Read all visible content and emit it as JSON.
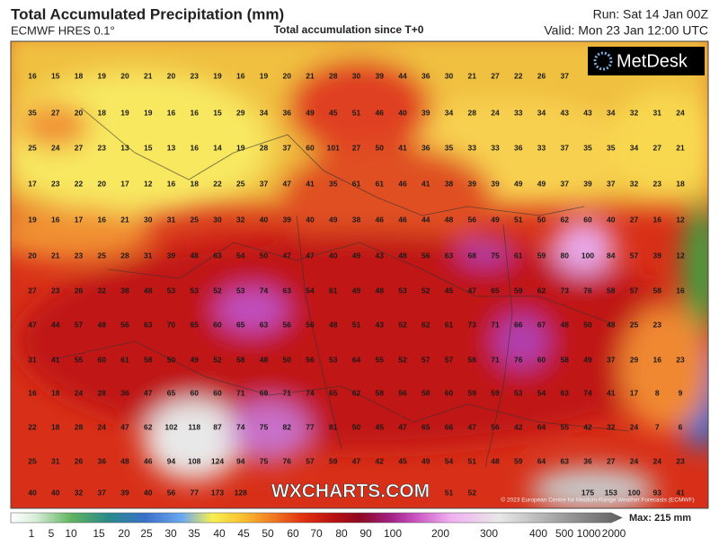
{
  "header": {
    "title": "Total Accumulated Precipitation (mm)",
    "model": "ECMWF HRES 0.1°",
    "subtitle": "Total accumulation since T+0",
    "run": "Run: Sat 14 Jan 00Z",
    "valid": "Valid: Mon 23 Jan 12:00 UTC"
  },
  "logo": "MetDesk",
  "watermark": "WXCHARTS.COM",
  "copyright": "© 2023 European Centre for Medium-Range Weather Forecasts (ECMWF)",
  "grid_values": [
    [
      16,
      15,
      18,
      19,
      20,
      21,
      20,
      23,
      19,
      16,
      19,
      20,
      21,
      28,
      30,
      39,
      44,
      36,
      30,
      21,
      27,
      22,
      26,
      37
    ],
    [
      35,
      27,
      20,
      18,
      19,
      19,
      16,
      16,
      15,
      29,
      34,
      36,
      49,
      45,
      51,
      46,
      40,
      39,
      34,
      28,
      24,
      33,
      34,
      43,
      43,
      34,
      32,
      31,
      24
    ],
    [
      25,
      24,
      27,
      23,
      13,
      15,
      13,
      16,
      14,
      19,
      28,
      37,
      60,
      101,
      27,
      50,
      41,
      36,
      35,
      33,
      33,
      36,
      33,
      37,
      35,
      35,
      34,
      27,
      21
    ],
    [
      17,
      23,
      22,
      20,
      17,
      12,
      16,
      18,
      22,
      25,
      37,
      47,
      41,
      35,
      61,
      61,
      46,
      41,
      38,
      39,
      39,
      49,
      49,
      37,
      39,
      37,
      32,
      23,
      18
    ],
    [
      19,
      16,
      17,
      16,
      21,
      30,
      31,
      25,
      30,
      32,
      40,
      39,
      40,
      49,
      38,
      46,
      46,
      44,
      48,
      56,
      49,
      51,
      50,
      62,
      60,
      40,
      27,
      16,
      12
    ],
    [
      20,
      21,
      23,
      25,
      28,
      31,
      39,
      48,
      63,
      54,
      50,
      47,
      47,
      40,
      49,
      43,
      48,
      56,
      63,
      68,
      75,
      61,
      59,
      80,
      100,
      84,
      57,
      39,
      12
    ],
    [
      27,
      23,
      26,
      32,
      38,
      48,
      53,
      53,
      52,
      53,
      74,
      63,
      54,
      61,
      49,
      48,
      53,
      52,
      45,
      47,
      65,
      59,
      62,
      73,
      76,
      58,
      57,
      58,
      16
    ],
    [
      47,
      44,
      57,
      48,
      56,
      63,
      70,
      65,
      60,
      65,
      63,
      56,
      56,
      48,
      51,
      43,
      52,
      62,
      61,
      73,
      71,
      66,
      67,
      48,
      50,
      48,
      25,
      23
    ],
    [
      31,
      41,
      55,
      60,
      61,
      58,
      50,
      49,
      52,
      58,
      48,
      50,
      56,
      53,
      64,
      55,
      52,
      57,
      57,
      58,
      71,
      76,
      60,
      58,
      49,
      37,
      29,
      16,
      23
    ],
    [
      16,
      18,
      24,
      28,
      36,
      47,
      65,
      60,
      60,
      71,
      69,
      71,
      74,
      65,
      62,
      58,
      56,
      58,
      60,
      59,
      59,
      53,
      54,
      63,
      74,
      41,
      17,
      8,
      9
    ],
    [
      22,
      18,
      28,
      24,
      47,
      62,
      102,
      118,
      87,
      74,
      75,
      82,
      77,
      81,
      50,
      45,
      47,
      65,
      66,
      47,
      56,
      42,
      64,
      55,
      42,
      32,
      24,
      7,
      6
    ],
    [
      25,
      31,
      26,
      36,
      48,
      46,
      94,
      108,
      124,
      94,
      75,
      76,
      57,
      59,
      47,
      42,
      45,
      49,
      54,
      51,
      48,
      59,
      64,
      63,
      36,
      27,
      24,
      24,
      23
    ],
    [
      40,
      40,
      32,
      37,
      39,
      40,
      56,
      77,
      173,
      128,
      51,
      52,
      175,
      153,
      100,
      93,
      41
    ]
  ],
  "legend": {
    "labels": [
      1,
      5,
      10,
      15,
      20,
      25,
      30,
      35,
      40,
      45,
      50,
      60,
      70,
      80,
      90,
      100,
      200,
      300,
      400,
      500,
      1000,
      2000
    ],
    "max": "Max: 215 mm"
  }
}
